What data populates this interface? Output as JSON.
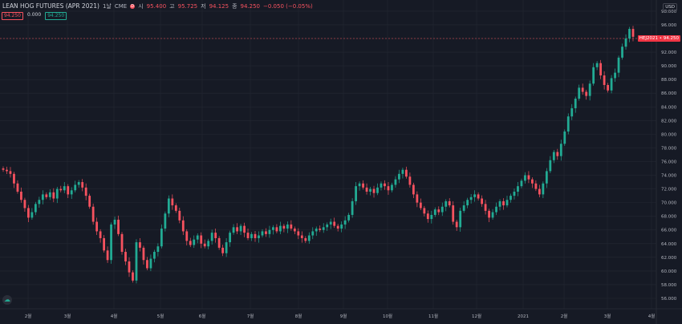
{
  "header": {
    "symbol_title": "LEAN HOG FUTURES (APR 2021)",
    "interval": "1날",
    "exchange": "CME",
    "indicator": "D",
    "ohlc": {
      "open_label": "시",
      "open": "95.400",
      "high_label": "고",
      "high": "95.725",
      "low_label": "저",
      "low": "94.125",
      "close_label": "종",
      "close": "94.250",
      "change": "−0.050 (−0.05%)"
    }
  },
  "badges": {
    "bid": "94.250",
    "spread": "0.000",
    "ask": "94.250"
  },
  "currency": "USD",
  "last_price_tag": "HEJ2021 • 94.250",
  "colors": {
    "up": "#22ab94",
    "down": "#f7525f",
    "background": "#161a25",
    "grid": "#242833"
  },
  "chart_data": {
    "type": "candlestick",
    "y_axis_ticks": [
      "98.000",
      "96.000",
      "94.000",
      "92.000",
      "90.000",
      "88.000",
      "86.000",
      "84.000",
      "82.000",
      "80.000",
      "78.000",
      "76.000",
      "74.000",
      "72.000",
      "70.000",
      "68.000",
      "66.000",
      "64.000",
      "62.000",
      "60.000",
      "58.000",
      "56.000"
    ],
    "ylim": [
      55,
      99
    ],
    "x_axis_ticks": [
      "2월",
      "3월",
      "4월",
      "5월",
      "6월",
      "7월",
      "8월",
      "9월",
      "10월",
      "11월",
      "12월",
      "2021",
      "2월",
      "3월",
      "4월"
    ],
    "last_price": 94.25,
    "close_series": [
      74.8,
      74.6,
      74.2,
      72.8,
      71.6,
      70.4,
      69.2,
      67.8,
      68.6,
      69.8,
      70.4,
      71.2,
      70.8,
      71.5,
      70.6,
      72.0,
      71.8,
      72.4,
      71.2,
      71.8,
      72.6,
      73.0,
      72.2,
      71.0,
      69.4,
      67.2,
      65.8,
      64.8,
      63.0,
      61.6,
      66.8,
      67.5,
      65.4,
      62.8,
      61.4,
      59.8,
      58.6,
      64.2,
      63.4,
      61.6,
      60.4,
      61.8,
      62.8,
      63.6,
      66.2,
      68.4,
      70.6,
      69.6,
      68.8,
      67.4,
      65.8,
      64.4,
      63.8,
      64.6,
      65.2,
      64.0,
      63.6,
      64.4,
      65.6,
      64.8,
      63.4,
      62.6,
      64.2,
      65.6,
      66.4,
      65.8,
      66.6,
      65.6,
      64.8,
      65.4,
      64.8,
      65.2,
      65.8,
      65.4,
      66.0,
      66.4,
      65.8,
      66.6,
      66.2,
      66.8,
      66.2,
      65.8,
      65.2,
      64.8,
      64.4,
      65.2,
      65.8,
      66.2,
      66.0,
      66.4,
      66.8,
      67.2,
      66.6,
      66.2,
      66.8,
      67.4,
      68.2,
      70.2,
      72.4,
      72.8,
      72.2,
      71.6,
      72.0,
      71.4,
      72.2,
      72.8,
      72.4,
      71.8,
      72.6,
      73.4,
      74.2,
      74.8,
      73.8,
      72.6,
      71.2,
      70.0,
      69.2,
      68.4,
      67.6,
      68.2,
      69.0,
      68.6,
      69.4,
      70.2,
      69.6,
      67.2,
      66.4,
      68.8,
      69.6,
      70.4,
      70.8,
      71.2,
      70.6,
      69.8,
      68.8,
      67.8,
      68.6,
      69.4,
      70.2,
      69.6,
      70.4,
      71.0,
      71.6,
      72.4,
      73.2,
      74.0,
      73.4,
      72.8,
      72.0,
      71.2,
      72.8,
      74.6,
      76.2,
      77.4,
      76.8,
      78.6,
      80.4,
      82.6,
      83.8,
      85.2,
      86.8,
      86.2,
      85.6,
      87.4,
      89.8,
      90.4,
      88.6,
      87.2,
      86.4,
      88.2,
      89.0,
      91.2,
      92.8,
      94.0,
      95.4,
      94.25
    ]
  }
}
